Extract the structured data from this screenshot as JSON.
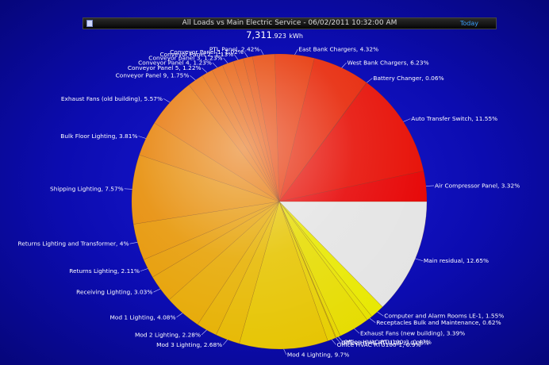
{
  "header": {
    "title": "All Loads vs Main Electric Service   -   06/02/2011 10:32:00 AM",
    "today_label": "Today",
    "total_main": "7,311",
    "total_decimal": ".923",
    "total_unit": "kWh"
  },
  "colors": {
    "background": "#0c0cb0",
    "header_bar": "#111111",
    "today_link": "#3aa0ff",
    "red": "#e00000",
    "orange": "#e48000",
    "yellow": "#e8e800",
    "residual": "#e6e6e6"
  },
  "chart_data": {
    "type": "pie",
    "start": "3 o'clock, clockwise",
    "slices": [
      {
        "label": "Main residual, 12.65%",
        "value": 12.65,
        "color": "#e4e4e4"
      },
      {
        "label": "Computer and Alarm Rooms LE-1, 1.55%",
        "value": 1.55,
        "color": "#e8e800"
      },
      {
        "label": "Receptacles Bulk and Maintenance, 0.62%",
        "value": 0.62,
        "color": "#e6e200"
      },
      {
        "label": "Exhaust Fans (new building), 3.39%",
        "value": 3.39,
        "color": "#e6dc00"
      },
      {
        "label": "Office HVAC RTU100-3, 0.47%",
        "value": 0.47,
        "color": "#e6d600"
      },
      {
        "label": "Office HVAC RTU100-2, 0.08%",
        "value": 0.08,
        "color": "#e6d200"
      },
      {
        "label": "Office HVAC RTU100-1, 0.9%",
        "value": 0.9,
        "color": "#e6ce00"
      },
      {
        "label": "Mod 4 Lighting, 9.7%",
        "value": 9.7,
        "color": "#e6c400"
      },
      {
        "label": "Mod 3 Lighting, 2.68%",
        "value": 2.68,
        "color": "#e6b800"
      },
      {
        "label": "Mod 2 Lighting, 2.28%",
        "value": 2.28,
        "color": "#e6b000"
      },
      {
        "label": "Mod 1 Lighting, 4.08%",
        "value": 4.08,
        "color": "#e6a800"
      },
      {
        "label": "Receiving Lighting, 3.03%",
        "value": 3.03,
        "color": "#e6a000"
      },
      {
        "label": "Returns Lighting, 2.11%",
        "value": 2.11,
        "color": "#e69a00"
      },
      {
        "label": "Returns Lighting and Transformer, 4%",
        "value": 4.0,
        "color": "#e69400"
      },
      {
        "label": "Shipping Lighting, 7.57%",
        "value": 7.57,
        "color": "#e68a00"
      },
      {
        "label": "Bulk Floor Lighting, 3.81%",
        "value": 3.81,
        "color": "#e67e00"
      },
      {
        "label": "Exhaust Fans (old building), 5.57%",
        "value": 5.57,
        "color": "#e67200"
      },
      {
        "label": "Conveyor Panel 9, 1.75%",
        "value": 1.75,
        "color": "#e66800"
      },
      {
        "label": "Conveyor Panel 5, 1.22%",
        "value": 1.22,
        "color": "#e66200"
      },
      {
        "label": "Conveyor Panel 4, 1.23%",
        "value": 1.23,
        "color": "#e65c00"
      },
      {
        "label": "Conveyor panel 3, 1.23%",
        "value": 1.23,
        "color": "#e65600"
      },
      {
        "label": "Conveyor Panel 2, 1.13%",
        "value": 1.13,
        "color": "#e65000"
      },
      {
        "label": "Conveyor Panel 1, 1.02%",
        "value": 1.02,
        "color": "#e64a00"
      },
      {
        "label": "PTL Panel, 2.42%",
        "value": 2.42,
        "color": "#e64000"
      },
      {
        "label": "East Bank Chargers, 4.32%",
        "value": 4.32,
        "color": "#e63000"
      },
      {
        "label": "West Bank Chargers, 6.23%",
        "value": 6.23,
        "color": "#e62000"
      },
      {
        "label": "Battery Changer, 0.06%",
        "value": 0.06,
        "color": "#e61400"
      },
      {
        "label": "Auto Transfer Switch, 11.55%",
        "value": 11.55,
        "color": "#e60a00"
      },
      {
        "label": "Air Compressor Panel, 3.32%",
        "value": 3.32,
        "color": "#e60000"
      }
    ]
  }
}
